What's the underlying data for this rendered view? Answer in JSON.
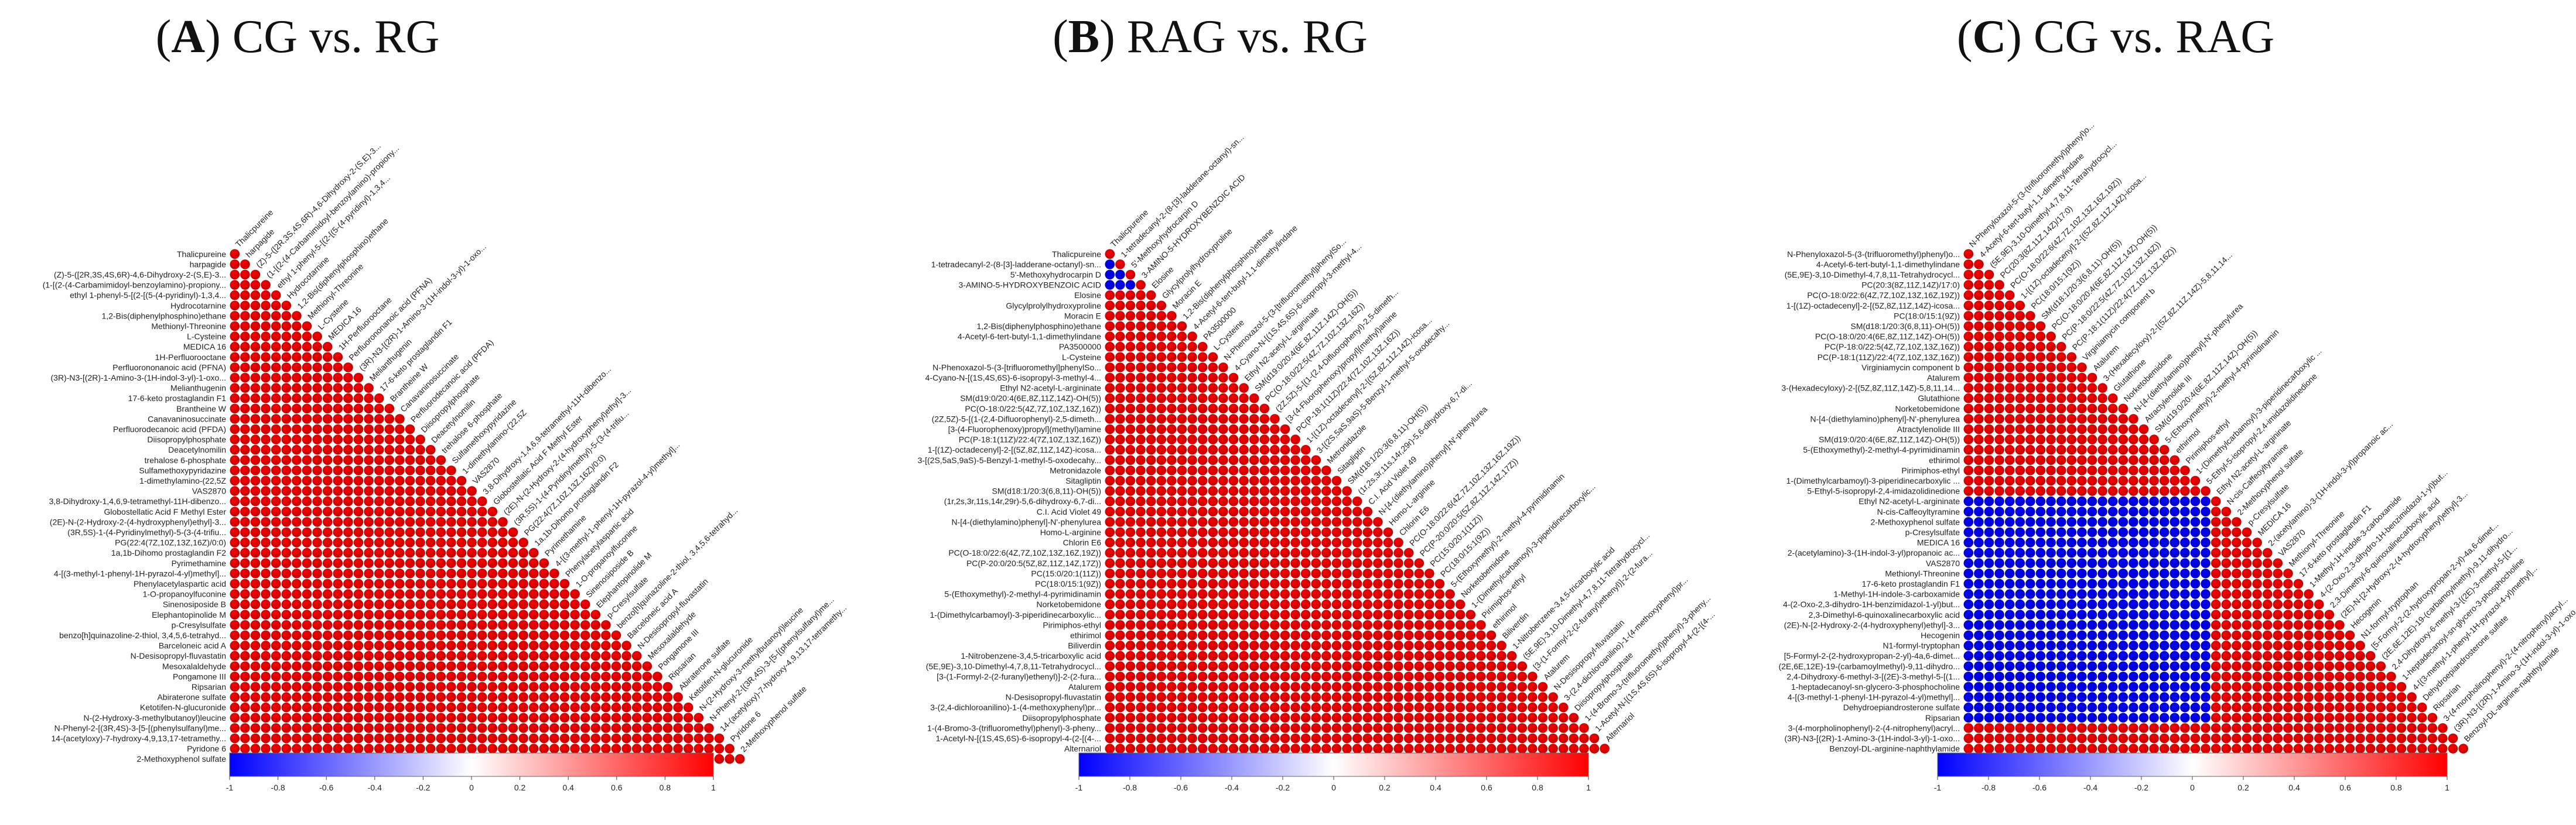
{
  "colors": {
    "positive": "#ff0000",
    "negative": "#0000ff",
    "zero": "#ffffff"
  },
  "chart_data": [
    {
      "type": "heatmap",
      "subtype": "correlation-triangle",
      "title_letter": "A",
      "title_text": "CG vs. RG",
      "scale": [
        -1,
        1
      ],
      "colorbar_ticks": [
        "-1",
        "-0.8",
        "-0.6",
        "-0.4",
        "-0.2",
        "0",
        "0.2",
        "0.4",
        "0.6",
        "0.8",
        "1"
      ],
      "negative_block": [],
      "labels": [
        "Thalicpureine",
        "harpagide",
        "(Z)-5-([2R,3S,4S,6R)-4,6-Dihydroxy-2-(S,E)-3...",
        "(1-[(2-(4-Carbamimidoyl-benzoylamino)-propiony...",
        "ethyl 1-phenyl-5-[(2-[(5-(4-pyridinyl)-1,3,4...",
        "Hydrocotarnine",
        "1,2-Bis(diphenylphosphino)ethane",
        "Methionyl-Threonine",
        "L-Cysteine",
        "MEDICA 16",
        "1H-Perfluorooctane",
        "Perfluorononanoic acid (PFNA)",
        "(3R)-N3-[(2R)-1-Amino-3-(1H-indol-3-yl)-1-oxo...",
        "Melianthugenin",
        "17-6-keto prostaglandin F1",
        "Brantheine W",
        "Canavaninosuccinate",
        "Perfluorodecanoic acid (PFDA)",
        "Diisopropylphosphate",
        "Deacetylnomilin",
        "trehalose 6-phosphate",
        "Sulfamethoxypyridazine",
        "1-dimethylamino-(22,5Z",
        "VAS2870",
        "3,8-Dihydroxy-1,4,6,9-tetramethyl-11H-dibenzo...",
        "Globostellatic Acid F Methyl Ester",
        "(2E)-N-(2-Hydroxy-2-(4-hydroxyphenyl)ethyl]-3...",
        "(3R,5S)-1-(4-Pyridinylmethyl)-5-(3-(4-trifiu...",
        "PG(22:4(7Z,10Z,13Z,16Z)/0:0)",
        "1a,1b-Dihomo prostaglandin F2",
        "Pyrimethamine",
        "4-[(3-methyl-1-phenyl-1H-pyrazol-4-yl)methyl]...",
        "Phenylacetylaspartic acid",
        "1-O-propanoylfuconine",
        "Sinenosiposide B",
        "Elephantopinolide M",
        "p-Cresylsulfate",
        "benzo[h]quinazoline-2-thiol, 3,4,5,6-tetrahyd...",
        "Barceloneic acid A",
        "N-Desisopropyl-fluvastatin",
        "Mesoxalaldehyde",
        "Pongamone III",
        "Ripsarian",
        "Abiraterone sulfate",
        "Ketotifen-N-glucuronide",
        "N-(2-Hydroxy-3-methylbutanoyl)leucine",
        "N-Phenyl-2-[(3R,4S)-3-[5-[(phenylsulfanyl)me...",
        "14-(acetyloxy)-7-hydroxy-4,9,13,17-tetramethy...",
        "Pyridone 6",
        "2-Methoxyphenol sulfate"
      ]
    },
    {
      "type": "heatmap",
      "subtype": "correlation-triangle",
      "title_letter": "B",
      "title_text": "RAG vs. RG",
      "scale": [
        -1,
        1
      ],
      "colorbar_ticks": [
        "-1",
        "-0.8",
        "-0.6",
        "-0.4",
        "-0.2",
        "0",
        "0.2",
        "0.4",
        "0.6",
        "0.8",
        "1"
      ],
      "negative_block": [
        [
          1,
          0
        ],
        [
          2,
          0
        ],
        [
          2,
          1
        ],
        [
          3,
          0
        ],
        [
          3,
          1
        ],
        [
          3,
          2
        ]
      ],
      "labels": [
        "Thalicpureine",
        "1-tetradecanyl-2-(8-[3]-ladderane-octanyl)-sn...",
        "5'-Methoxyhydrocarpin D",
        "3-AMINO-5-HYDROXYBENZOIC ACID",
        "Elosine",
        "Glycylprolylhydroxyproline",
        "Moracin E",
        "1,2-Bis(diphenylphosphino)ethane",
        "4-Acetyl-6-tert-butyl-1,1-dimethylindane",
        "PA3500000",
        "L-Cysteine",
        "N-Phenoxazol-5-(3-[trifluoromethyl]phenylSo...",
        "4-Cyano-N-[(1S,4S,6S)-6-isopropyl-3-methyl-4...",
        "Ethyl N2-acetyl-L-argininate",
        "SM(d19:0/20:4(6E,8Z,11Z,14Z)-OH(5))",
        "PC(O-18:0/22:5(4Z,7Z,10Z,13Z,16Z))",
        "(2Z,5Z)-5-[(1-(2,4-Difluorophenyl)-2,5-dimeth...",
        "[3-(4-Fluorophenoxy)propyl](methyl)amine",
        "PC(P-18:1(11Z)/22:4(7Z,10Z,13Z,16Z))",
        "1-[(1Z)-octadecenyl]-2-[(5Z,8Z,11Z,14Z)-icosa...",
        "3-[(2S,5aS,9aS)-5-Benzyl-1-methyl-5-oxodecahy...",
        "Metronidazole",
        "Sitagliptin",
        "SM(d18:1/20:3(6,8,11)-OH(5))",
        "(1r,2s,3r,11s,14r,29r)-5,6-dihydroxy-6,7-di...",
        "C.I. Acid Violet 49",
        "N-[4-(diethylamino)phenyl]-N'-phenylurea",
        "Homo-L-arginine",
        "Chlorin E6",
        "PC(O-18:0/22:6(4Z,7Z,10Z,13Z,16Z,19Z))",
        "PC(P-20:0/20:5(5Z,8Z,11Z,14Z,17Z))",
        "PC(15:0/20:1(11Z))",
        "PC(18:0/15:1(9Z))",
        "5-(Ethoxymethyl)-2-methyl-4-pyrimidinamin",
        "Norketobemidone",
        "1-(Dimethylcarbamoyl)-3-piperidinecarboxylic...",
        "Pirimiphos-ethyl",
        "ethirimol",
        "Biliverdin",
        "1-Nitrobenzene-3,4,5-tricarboxylic acid",
        "(5E,9E)-3,10-Dimethyl-4,7,8,11-Tetrahydrocycl...",
        "[3-(1-Formyl-2-(2-furanyl)ethenyl)]-2-(2-fura...",
        "Atalurem",
        "N-Desisopropyl-fluvastatin",
        "3-(2,4-dichloroanilino)-1-(4-methoxyphenyl)pr...",
        "Diisopropylphosphate",
        "1-(4-Bromo-3-(trifluoromethyl)phenyl)-3-pheny...",
        "1-Acetyl-N-[(1S,4S,6S)-6-isopropyl-4-(2-[(4-...",
        "Alternariol"
      ]
    },
    {
      "type": "heatmap",
      "subtype": "correlation-triangle",
      "title_letter": "C",
      "title_text": "CG vs. RAG",
      "scale": [
        -1,
        1
      ],
      "colorbar_ticks": [
        "-1",
        "-0.8",
        "-0.6",
        "-0.4",
        "-0.2",
        "0",
        "0.2",
        "0.4",
        "0.6",
        "0.8",
        "1"
      ],
      "negative_block": [
        [
          24,
          0
        ],
        [
          24,
          23
        ],
        [
          45,
          0
        ],
        [
          45,
          23
        ]
      ],
      "labels": [
        "N-Phenyloxazol-5-(3-(trifluoromethyl)phenyl)o...",
        "4-Acetyl-6-tert-butyl-1,1-dimethylindane",
        "(5E,9E)-3,10-Dimethyl-4,7,8,11-Tetrahydrocycl...",
        "PC(20:3(8Z,11Z,14Z)/17:0)",
        "PC(O-18:0/22:6(4Z,7Z,10Z,13Z,16Z,19Z))",
        "1-[(1Z)-octadecenyl]-2-[(5Z,8Z,11Z,14Z)-icosa...",
        "PC(18:0/15:1(9Z))",
        "SM(d18:1/20:3(6,8,11)-OH(5))",
        "PC(O-18:0/20:4(6E,8Z,11Z,14Z)-OH(5))",
        "PC(P-18:0/22:5(4Z,7Z,10Z,13Z,16Z))",
        "PC(P-18:1(11Z)/22:4(7Z,10Z,13Z,16Z))",
        "Virginiamycin component b",
        "Atalurem",
        "3-(Hexadecyloxy)-2-[(5Z,8Z,11Z,14Z)-5,8,11,14...",
        "Glutathione",
        "Norketobemidone",
        "N-[4-(diethylamino)phenyl]-N'-phenylurea",
        "Atractylenolide III",
        "SM(d19:0/20:4(6E,8Z,11Z,14Z)-OH(5))",
        "5-(Ethoxymethyl)-2-methyl-4-pyrimidinamin",
        "ethirimol",
        "Pirimiphos-ethyl",
        "1-(Dimethylcarbamoyl)-3-piperidinecarboxylic ...",
        "5-Ethyl-5-isopropyl-2,4-imidazolidinedione",
        "Ethyl N2-acetyl-L-argininate",
        "N-cis-Caffeoyltyramine",
        "2-Methoxyphenol sulfate",
        "p-Cresylsulfate",
        "MEDICA 16",
        "2-(acetylamino)-3-(1H-indol-3-yl)propanoic ac...",
        "VAS2870",
        "Methionyl-Threonine",
        "17-6-keto prostaglandin F1",
        "1-Methyl-1H-indole-3-carboxamide",
        "4-(2-Oxo-2,3-dihydro-1H-benzimidazol-1-yl)but...",
        "2,3-Dimethyl-6-quinoxalinecarboxylic acid",
        "(2E)-N-[2-Hydroxy-2-(4-hydroxyphenyl)ethyl]-3...",
        "Hecogenin",
        "N1-formyl-tryptophan",
        "[5-Formyl-2-(2-hydroxypropan-2-yl)-4a,6-dimet...",
        "(2E,6E,12E)-19-(carbamoylmethyl)-9,11-dihydro...",
        "2,4-Dihydroxy-6-methyl-3-[(2E)-3-methyl-5-[(1...",
        "1-heptadecanoyl-sn-glycero-3-phosphocholine",
        "4-[(3-methyl-1-phenyl-1H-pyrazol-4-yl)methyl]...",
        "Dehydroepiandrosterone sulfate",
        "Ripsarian",
        "3-(4-morpholinophenyl)-2-(4-nitrophenyl)acryl...",
        "(3R)-N3-[(2R)-1-Amino-3-(1H-indol-3-yl)-1-oxo...",
        "Benzoyl-DL-arginine-naphthylamide"
      ]
    }
  ]
}
